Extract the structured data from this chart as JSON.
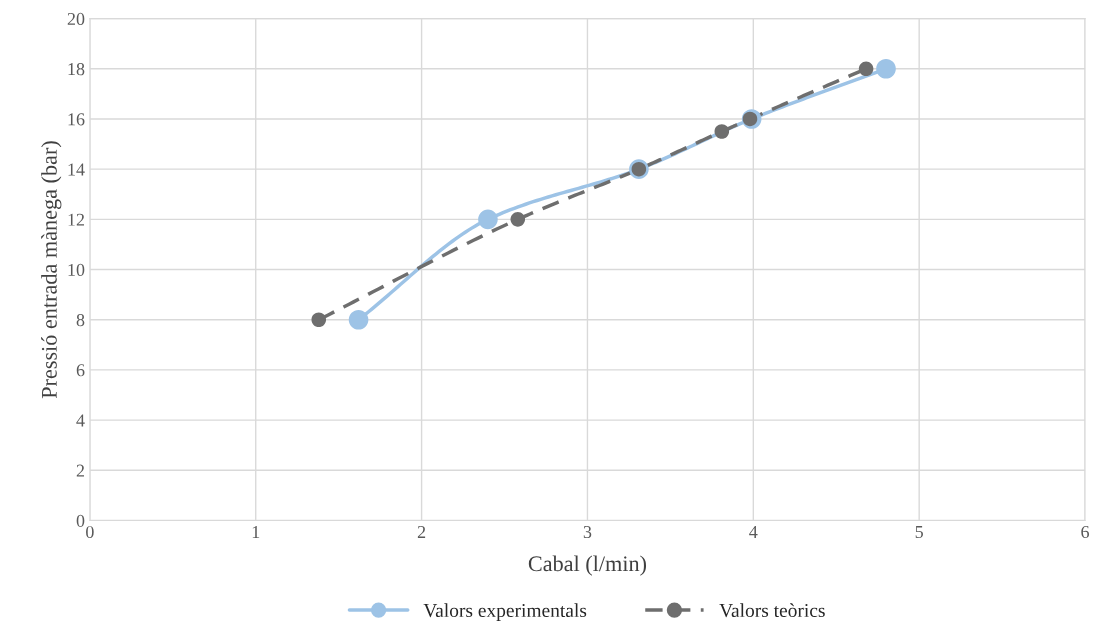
{
  "chart_data": {
    "type": "line",
    "xlabel": "Cabal (l/min)",
    "ylabel": "Pressió entrada mànega (bar)",
    "xlim": [
      0,
      6
    ],
    "xticks": [
      0,
      1,
      2,
      3,
      4,
      5,
      6
    ],
    "ylim": [
      0,
      20
    ],
    "yticks": [
      0,
      2,
      4,
      6,
      8,
      10,
      12,
      14,
      16,
      18,
      20
    ],
    "grid": true,
    "legend": "bottom",
    "marker": "circle",
    "series": [
      {
        "name": "Valors experimentals",
        "color": "#9dc3e6",
        "line_style": "solid",
        "x": [
          1.62,
          2.4,
          3.31,
          3.99,
          4.8
        ],
        "values": [
          8,
          12,
          14,
          16,
          18
        ]
      },
      {
        "name": "Valors teòrics",
        "color": "#6e6e6e",
        "line_style": "dashed",
        "x": [
          1.38,
          2.58,
          3.31,
          3.81,
          3.98,
          4.68
        ],
        "values": [
          8,
          12,
          14,
          15.5,
          16,
          18
        ]
      }
    ]
  }
}
